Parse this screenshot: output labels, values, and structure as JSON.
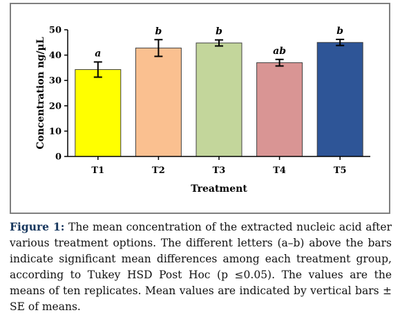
{
  "chart_data": {
    "type": "bar",
    "categories": [
      "T1",
      "T2",
      "T3",
      "T4",
      "T5"
    ],
    "values": [
      34.3,
      42.8,
      44.8,
      37.0,
      45.0
    ],
    "error": [
      3.0,
      3.3,
      1.2,
      1.3,
      1.2
    ],
    "significance_letters": [
      "a",
      "b",
      "b",
      "ab",
      "b"
    ],
    "bar_colors": [
      "#ffff00",
      "#fac090",
      "#c3d69b",
      "#d99594",
      "#2e5597"
    ],
    "xlabel": "Treatment",
    "ylabel": "Concentration  ng/µL",
    "ylim": [
      0,
      50
    ],
    "yticks": [
      "0",
      "10",
      "20",
      "30",
      "40",
      "50"
    ],
    "grid": false,
    "legend": "none"
  },
  "caption": {
    "label": "Figure 1:",
    "text": " The mean concentration of the extracted nucleic acid after various treatment options. The different letters (a–b) above the bars indicate significant mean differences among each treatment group, according to Tukey HSD Post Hoc (p ≤0.05). The values are the means of ten replicates. Mean values are indicated by vertical bars ± SE of means."
  }
}
